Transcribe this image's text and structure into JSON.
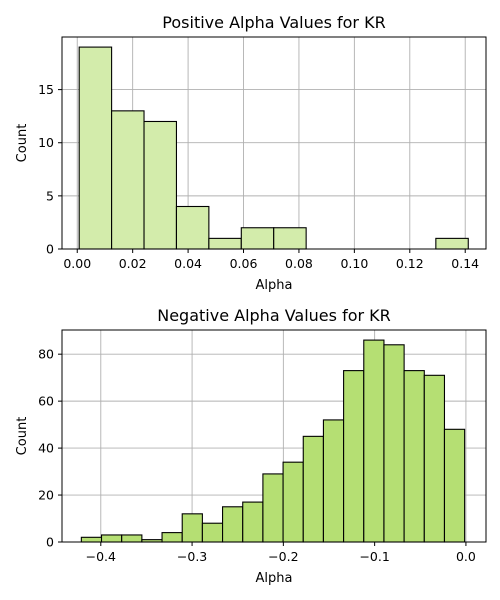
{
  "chart_data": [
    {
      "type": "bar",
      "title": "Positive Alpha Values for KR",
      "xlabel": "Alpha",
      "ylabel": "Count",
      "xlim": [
        -0.0055,
        0.1475
      ],
      "ylim": [
        0,
        19.95
      ],
      "grid": true,
      "bar_color": "#d3ecab",
      "xticks": [
        0.0,
        0.02,
        0.04,
        0.06,
        0.08,
        0.1,
        0.12,
        0.14
      ],
      "xtick_labels": [
        "0.00",
        "0.02",
        "0.04",
        "0.06",
        "0.08",
        "0.10",
        "0.12",
        "0.14"
      ],
      "yticks": [
        0,
        5,
        10,
        15
      ],
      "ytick_labels": [
        "0",
        "5",
        "10",
        "15"
      ],
      "bins": [
        {
          "x0": 0.0007,
          "x1": 0.0124,
          "count": 19
        },
        {
          "x0": 0.0124,
          "x1": 0.0241,
          "count": 13
        },
        {
          "x0": 0.0241,
          "x1": 0.0358,
          "count": 12
        },
        {
          "x0": 0.0358,
          "x1": 0.0475,
          "count": 4
        },
        {
          "x0": 0.0475,
          "x1": 0.0592,
          "count": 1
        },
        {
          "x0": 0.0592,
          "x1": 0.0709,
          "count": 2
        },
        {
          "x0": 0.0709,
          "x1": 0.0826,
          "count": 2
        },
        {
          "x0": 0.0826,
          "x1": 0.0943,
          "count": 0
        },
        {
          "x0": 0.0943,
          "x1": 0.106,
          "count": 0
        },
        {
          "x0": 0.106,
          "x1": 0.1177,
          "count": 0
        },
        {
          "x0": 0.1177,
          "x1": 0.1294,
          "count": 0
        },
        {
          "x0": 0.1294,
          "x1": 0.1411,
          "count": 1
        }
      ]
    },
    {
      "type": "bar",
      "title": "Negative Alpha Values for KR",
      "xlabel": "Alpha",
      "ylabel": "Count",
      "xlim": [
        -0.4425,
        0.022
      ],
      "ylim": [
        0,
        90.3
      ],
      "grid": true,
      "bar_color": "#b5df73",
      "xticks": [
        -0.4,
        -0.3,
        -0.2,
        -0.1,
        0.0
      ],
      "xtick_labels": [
        "−0.4",
        "−0.3",
        "−0.2",
        "−0.1",
        "0.0"
      ],
      "yticks": [
        0,
        20,
        40,
        60,
        80
      ],
      "ytick_labels": [
        "0",
        "20",
        "40",
        "60",
        "80"
      ],
      "bins": [
        {
          "x0": -0.4213,
          "x1": -0.3992,
          "count": 2
        },
        {
          "x0": -0.3992,
          "x1": -0.3771,
          "count": 3
        },
        {
          "x0": -0.3771,
          "x1": -0.355,
          "count": 3
        },
        {
          "x0": -0.355,
          "x1": -0.3329,
          "count": 1
        },
        {
          "x0": -0.3329,
          "x1": -0.3108,
          "count": 4
        },
        {
          "x0": -0.3108,
          "x1": -0.2887,
          "count": 12
        },
        {
          "x0": -0.2887,
          "x1": -0.2666,
          "count": 8
        },
        {
          "x0": -0.2666,
          "x1": -0.2445,
          "count": 15
        },
        {
          "x0": -0.2445,
          "x1": -0.2224,
          "count": 17
        },
        {
          "x0": -0.2224,
          "x1": -0.2003,
          "count": 29
        },
        {
          "x0": -0.2003,
          "x1": -0.1782,
          "count": 34
        },
        {
          "x0": -0.1782,
          "x1": -0.1561,
          "count": 45
        },
        {
          "x0": -0.1561,
          "x1": -0.134,
          "count": 52
        },
        {
          "x0": -0.134,
          "x1": -0.1119,
          "count": 73
        },
        {
          "x0": -0.1119,
          "x1": -0.0898,
          "count": 86
        },
        {
          "x0": -0.0898,
          "x1": -0.0677,
          "count": 84
        },
        {
          "x0": -0.0677,
          "x1": -0.0456,
          "count": 73
        },
        {
          "x0": -0.0456,
          "x1": -0.0235,
          "count": 71
        },
        {
          "x0": -0.0235,
          "x1": -0.0014,
          "count": 48
        }
      ]
    }
  ]
}
